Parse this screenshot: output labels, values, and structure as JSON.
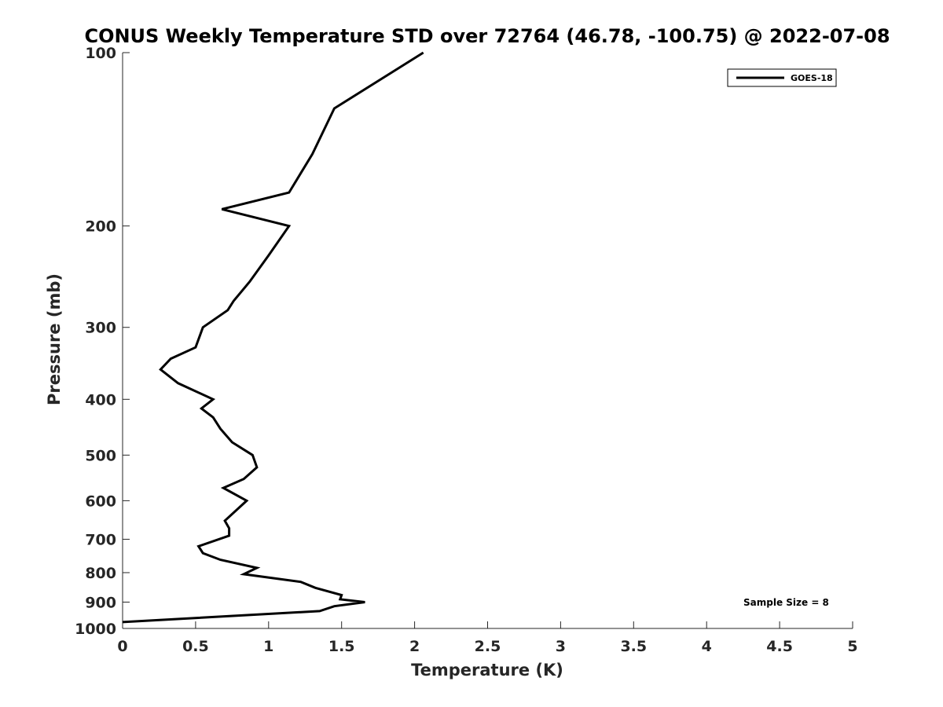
{
  "chart_data": {
    "type": "line",
    "title": "CONUS Weekly Temperature STD over 72764 (46.78, -100.75) @ 2022-07-08",
    "xlabel": "Temperature (K)",
    "ylabel": "Pressure (mb)",
    "xlim": [
      0,
      5
    ],
    "ylim": [
      100,
      1000
    ],
    "y_scale": "log",
    "y_reversed": true,
    "x_ticks": [
      "0",
      "0.5",
      "1",
      "1.5",
      "2",
      "2.5",
      "3",
      "3.5",
      "4",
      "4.5",
      "5"
    ],
    "y_ticks": [
      "100",
      "200",
      "300",
      "400",
      "500",
      "600",
      "700",
      "800",
      "900",
      "1000"
    ],
    "grid": false,
    "legend_position": "top-right",
    "series": [
      {
        "name": "GOES-18",
        "color": "#000000",
        "points": [
          [
            2.06,
            100
          ],
          [
            1.45,
            125
          ],
          [
            1.3,
            150
          ],
          [
            1.14,
            175
          ],
          [
            0.68,
            187
          ],
          [
            1.14,
            200
          ],
          [
            1.0,
            225
          ],
          [
            0.87,
            250
          ],
          [
            0.76,
            270
          ],
          [
            0.72,
            280
          ],
          [
            0.55,
            300
          ],
          [
            0.5,
            325
          ],
          [
            0.33,
            340
          ],
          [
            0.26,
            355
          ],
          [
            0.38,
            375
          ],
          [
            0.62,
            400
          ],
          [
            0.54,
            415
          ],
          [
            0.62,
            430
          ],
          [
            0.67,
            450
          ],
          [
            0.75,
            475
          ],
          [
            0.89,
            500
          ],
          [
            0.92,
            525
          ],
          [
            0.83,
            550
          ],
          [
            0.69,
            570
          ],
          [
            0.85,
            600
          ],
          [
            0.7,
            650
          ],
          [
            0.73,
            670
          ],
          [
            0.73,
            690
          ],
          [
            0.52,
            720
          ],
          [
            0.55,
            740
          ],
          [
            0.67,
            760
          ],
          [
            0.92,
            785
          ],
          [
            0.83,
            805
          ],
          [
            1.22,
            830
          ],
          [
            1.32,
            850
          ],
          [
            1.5,
            875
          ],
          [
            1.49,
            890
          ],
          [
            1.66,
            900
          ],
          [
            1.45,
            915
          ],
          [
            1.35,
            933
          ],
          [
            0.0,
            975
          ]
        ]
      }
    ],
    "annotations": [
      "Sample Size = 8"
    ]
  }
}
